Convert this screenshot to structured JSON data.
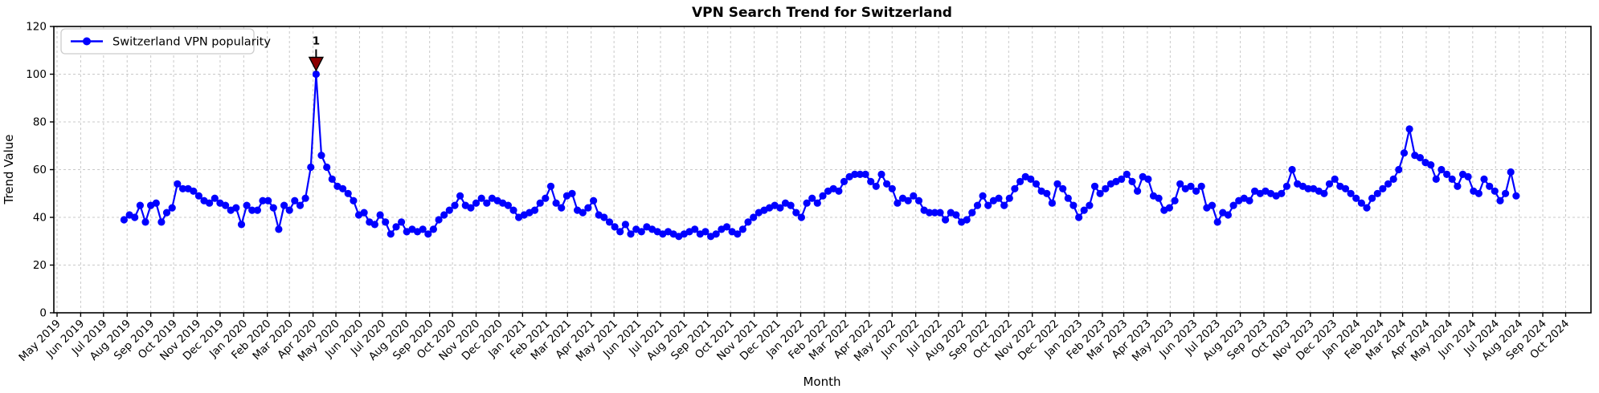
{
  "chart_data": {
    "type": "line",
    "title": "VPN Search Trend for Switzerland",
    "xlabel": "Month",
    "ylabel": "Trend Value",
    "grid": true,
    "legend": {
      "position": "upper-left",
      "entries": [
        {
          "label": "Switzerland VPN popularity",
          "color": "#0000ff",
          "marker": "circle"
        }
      ]
    },
    "ylim": [
      0,
      120
    ],
    "y_ticks": [
      0,
      20,
      40,
      60,
      80,
      100,
      120
    ],
    "x_axis": {
      "tick_labels": [
        "May 2019",
        "Jun 2019",
        "Jul 2019",
        "Aug 2019",
        "Sep 2019",
        "Oct 2019",
        "Nov 2019",
        "Dec 2019",
        "Jan 2020",
        "Feb 2020",
        "Mar 2020",
        "Apr 2020",
        "May 2020",
        "Jun 2020",
        "Jul 2020",
        "Aug 2020",
        "Sep 2020",
        "Oct 2020",
        "Nov 2020",
        "Dec 2020",
        "Jan 2021",
        "Feb 2021",
        "Mar 2021",
        "Apr 2021",
        "May 2021",
        "Jun 2021",
        "Jul 2021",
        "Aug 2021",
        "Sep 2021",
        "Oct 2021",
        "Nov 2021",
        "Dec 2021",
        "Jan 2022",
        "Feb 2022",
        "Mar 2022",
        "Apr 2022",
        "May 2022",
        "Jun 2022",
        "Jul 2022",
        "Aug 2022",
        "Sep 2022",
        "Oct 2022",
        "Nov 2022",
        "Dec 2022",
        "Jan 2023",
        "Feb 2023",
        "Mar 2023",
        "Apr 2023",
        "May 2023",
        "Jun 2023",
        "Jul 2023",
        "Aug 2023",
        "Sep 2023",
        "Oct 2023",
        "Nov 2023",
        "Dec 2023",
        "Jan 2024",
        "Feb 2024",
        "Mar 2024",
        "Apr 2024",
        "May 2024",
        "Jun 2024",
        "Jul 2024",
        "Aug 2024",
        "Sep 2024",
        "Oct 2024"
      ]
    },
    "series": [
      {
        "name": "Switzerland VPN popularity",
        "color": "#0000ff",
        "cadence": "weekly",
        "start_date": "2019-07-28",
        "values": [
          39,
          41,
          40,
          45,
          38,
          45,
          46,
          38,
          42,
          44,
          54,
          52,
          52,
          51,
          49,
          47,
          46,
          48,
          46,
          45,
          43,
          44,
          37,
          45,
          43,
          43,
          47,
          47,
          44,
          35,
          45,
          43,
          47,
          45,
          48,
          61,
          100,
          66,
          61,
          56,
          53,
          52,
          50,
          47,
          41,
          42,
          38,
          37,
          41,
          38,
          33,
          36,
          38,
          34,
          35,
          34,
          35,
          33,
          35,
          39,
          41,
          43,
          45,
          49,
          45,
          44,
          46,
          48,
          46,
          48,
          47,
          46,
          45,
          43,
          40,
          41,
          42,
          43,
          46,
          48,
          53,
          46,
          44,
          49,
          50,
          43,
          42,
          44,
          47,
          41,
          40,
          38,
          36,
          34,
          37,
          33,
          35,
          34,
          36,
          35,
          34,
          33,
          34,
          33,
          32,
          33,
          34,
          35,
          33,
          34,
          32,
          33,
          35,
          36,
          34,
          33,
          35,
          38,
          40,
          42,
          43,
          44,
          45,
          44,
          46,
          45,
          42,
          40,
          46,
          48,
          46,
          49,
          51,
          52,
          51,
          55,
          57,
          58,
          58,
          58,
          55,
          53,
          58,
          54,
          52,
          46,
          48,
          47,
          49,
          47,
          43,
          42,
          42,
          42,
          39,
          42,
          41,
          38,
          39,
          42,
          45,
          49,
          45,
          47,
          48,
          45,
          48,
          52,
          55,
          57,
          56,
          54,
          51,
          50,
          46,
          54,
          52,
          48,
          45,
          40,
          43,
          45,
          53,
          50,
          52,
          54,
          55,
          56,
          58,
          55,
          51,
          57,
          56,
          49,
          48,
          43,
          44,
          47,
          54,
          52,
          53,
          51,
          53,
          44,
          45,
          38,
          42,
          41,
          45,
          47,
          48,
          47,
          51,
          50,
          51,
          50,
          49,
          50,
          53,
          60,
          54,
          53,
          52,
          52,
          51,
          50,
          54,
          56,
          53,
          52,
          50,
          48,
          46,
          44,
          48,
          50,
          52,
          54,
          56,
          60,
          67,
          77,
          66,
          65,
          63,
          62,
          56,
          60,
          58,
          56,
          53,
          58,
          57,
          51,
          50,
          56,
          53,
          51,
          47,
          50,
          59,
          49
        ]
      }
    ],
    "annotation": {
      "label": "1",
      "color": "#8b0000",
      "point_index": 36,
      "value": 100
    },
    "styles": {
      "grid_color": "#c9c9c9",
      "spine_color": "#000000",
      "background": "#ffffff"
    }
  }
}
